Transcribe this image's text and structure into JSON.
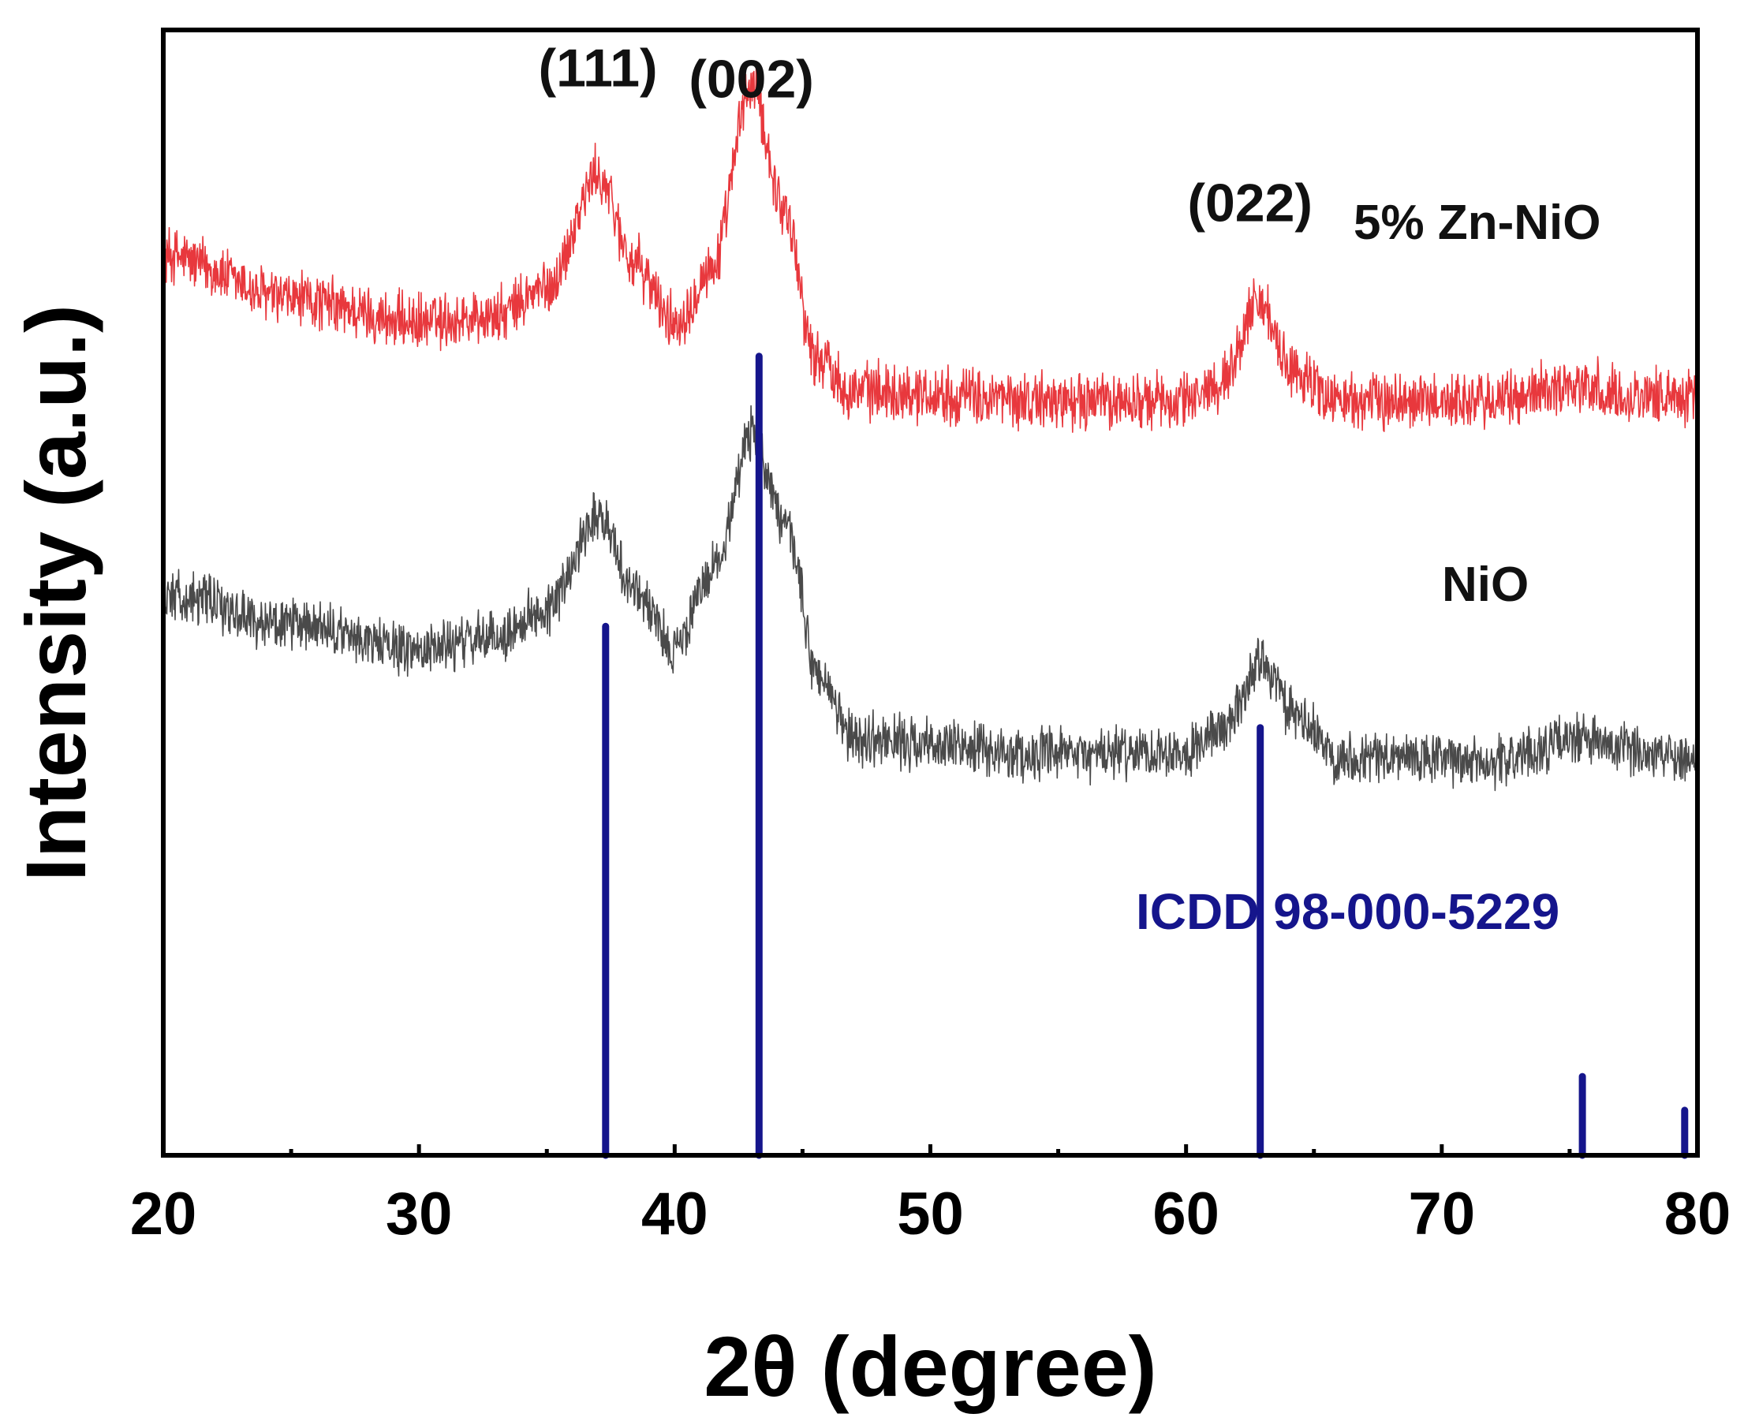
{
  "chart_data": {
    "type": "line",
    "title": "",
    "xlabel": "2θ (degree)",
    "ylabel": "Intensity (a.u.)",
    "xlim": [
      20,
      80
    ],
    "ylim": [
      0,
      100
    ],
    "xticks": [
      20,
      30,
      40,
      50,
      60,
      70,
      80
    ],
    "xtick_labels": [
      "20",
      "30",
      "40",
      "50",
      "60",
      "70",
      "80"
    ],
    "y_ticks_shown": false,
    "grid": false,
    "series": [
      {
        "name": "5% Zn-NiO",
        "color": "#e8383d",
        "label_text": "5% Zn-NiO",
        "baseline": 66,
        "noise_amplitude": 2.2,
        "profile": [
          [
            20,
            80
          ],
          [
            25,
            76
          ],
          [
            30,
            74
          ],
          [
            33,
            74.5
          ],
          [
            35,
            77
          ],
          [
            37,
            87
          ],
          [
            38.5,
            79
          ],
          [
            40,
            74
          ],
          [
            41.5,
            79
          ],
          [
            43,
            95
          ],
          [
            44.3,
            84
          ],
          [
            45.5,
            71
          ],
          [
            47,
            68
          ],
          [
            55,
            67
          ],
          [
            60,
            67
          ],
          [
            61.5,
            69
          ],
          [
            62.8,
            76
          ],
          [
            64,
            70
          ],
          [
            66,
            67
          ],
          [
            72,
            67
          ],
          [
            75,
            68.5
          ],
          [
            77,
            67.5
          ],
          [
            80,
            67.5
          ]
        ]
      },
      {
        "name": "NiO",
        "color": "#4a4a4a",
        "label_text": "NiO",
        "baseline": 34,
        "noise_amplitude": 2.0,
        "profile": [
          [
            20,
            50
          ],
          [
            25,
            47
          ],
          [
            30,
            45
          ],
          [
            33,
            46
          ],
          [
            35,
            48.5
          ],
          [
            37,
            57
          ],
          [
            38.5,
            50
          ],
          [
            40,
            45
          ],
          [
            41.5,
            52
          ],
          [
            43,
            64
          ],
          [
            44.5,
            55
          ],
          [
            45.5,
            43
          ],
          [
            47,
            37
          ],
          [
            55,
            35.5
          ],
          [
            60,
            36
          ],
          [
            61.5,
            38
          ],
          [
            63,
            44
          ],
          [
            64.2,
            39
          ],
          [
            66,
            35.5
          ],
          [
            72,
            35
          ],
          [
            75.5,
            37
          ],
          [
            77,
            36
          ],
          [
            80,
            35.5
          ]
        ]
      }
    ],
    "reference": {
      "name": "ICDD 98-000-5229",
      "label_text": "ICDD 98-000-5229",
      "color": "#15158c",
      "positions": [
        37.3,
        43.3,
        62.9,
        75.5,
        79.5
      ],
      "heights": [
        47,
        71,
        38,
        7,
        4
      ]
    },
    "annotations": [
      {
        "text": "(111)",
        "x": 37.0,
        "y": 95
      },
      {
        "text": "(002)",
        "x": 43.0,
        "y": 94
      },
      {
        "text": "(022)",
        "x": 62.5,
        "y": 83
      }
    ]
  }
}
